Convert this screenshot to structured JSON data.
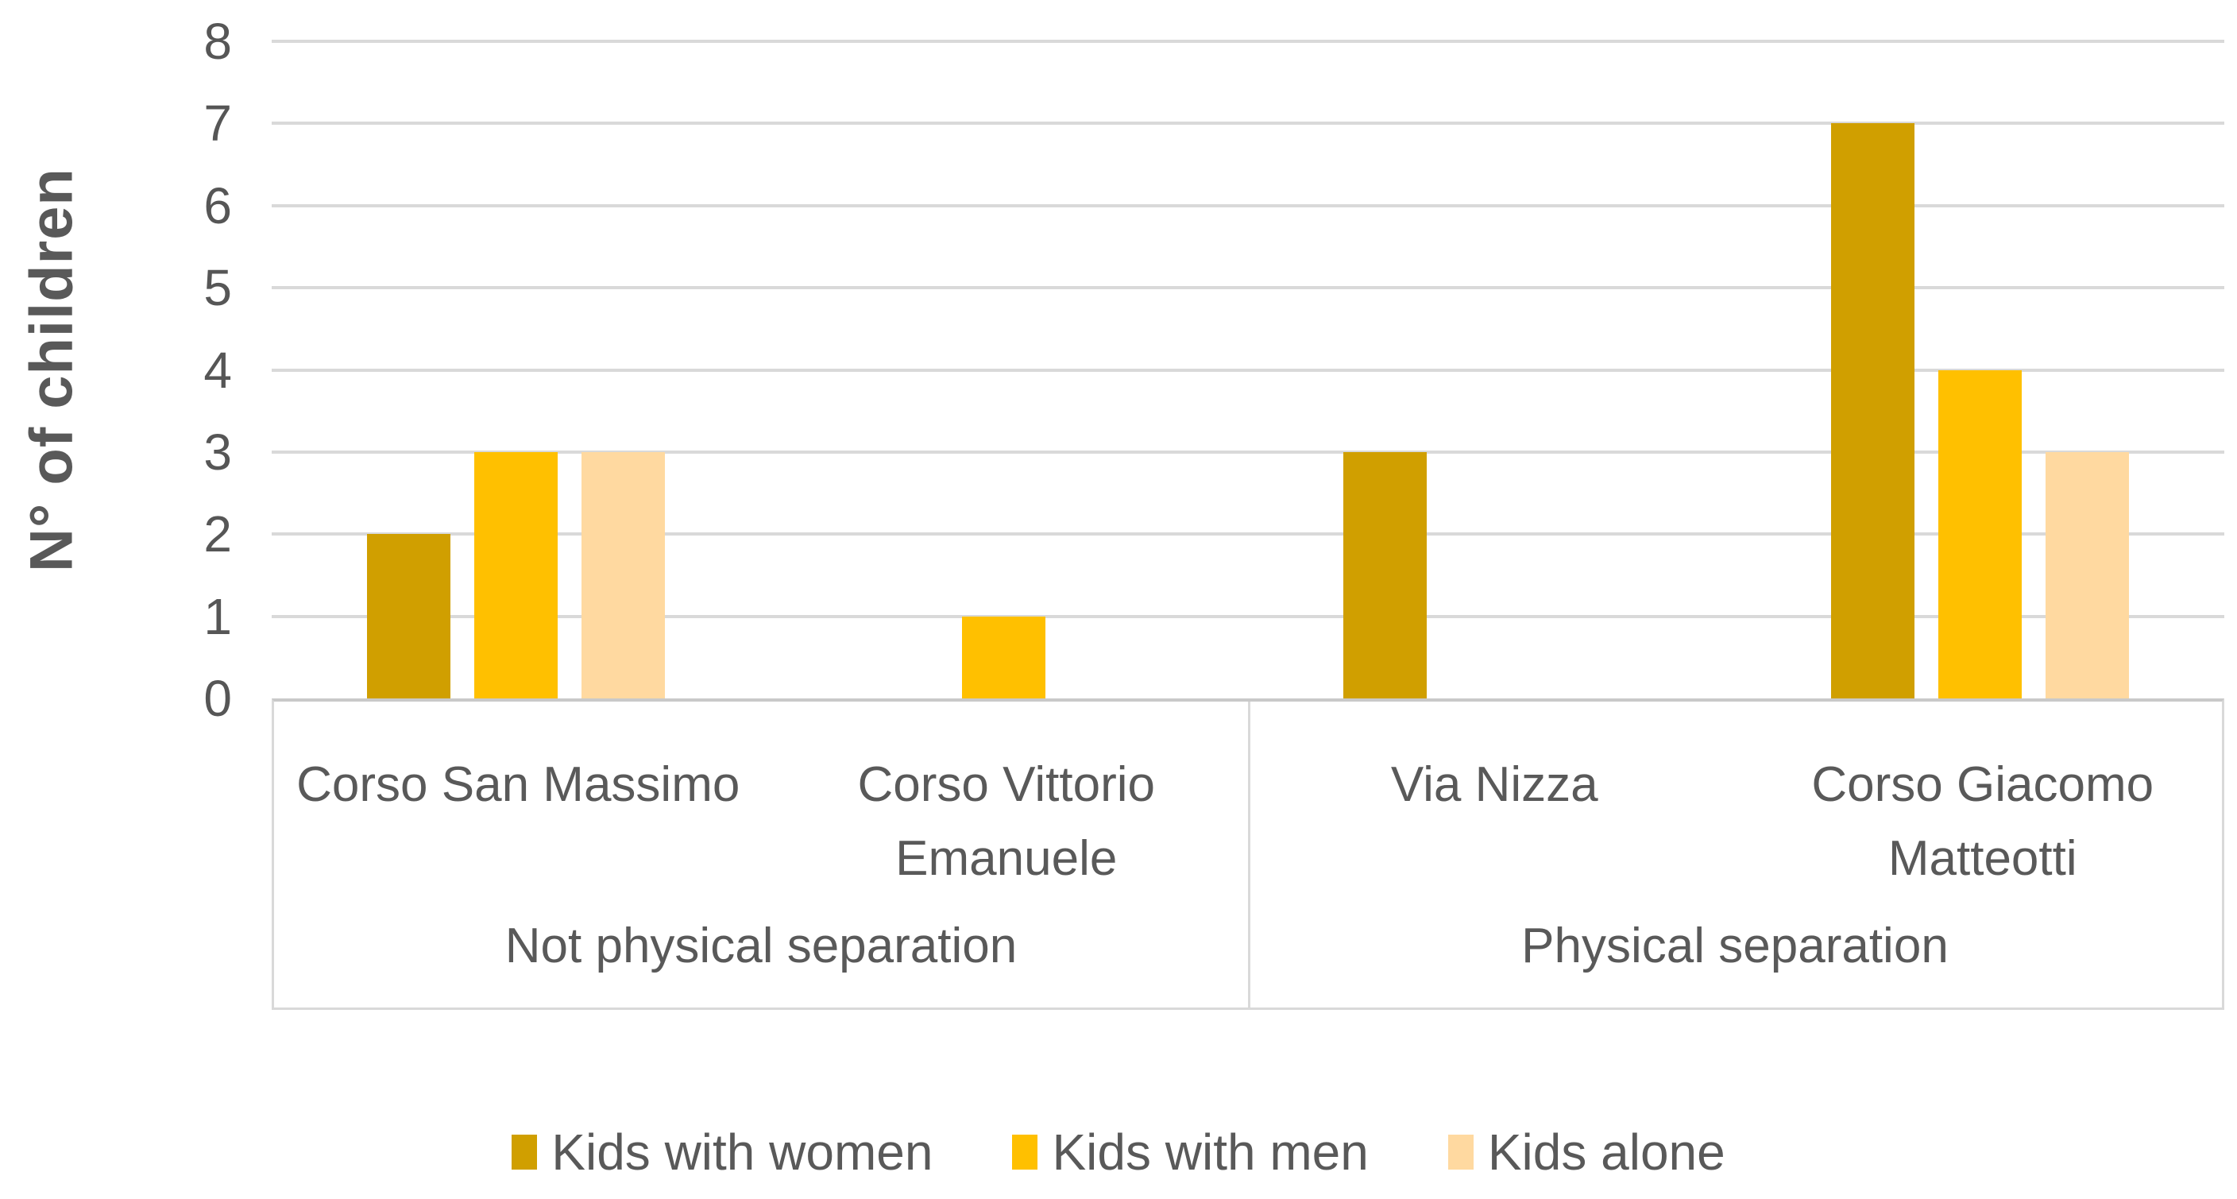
{
  "chart_data": {
    "type": "bar",
    "title": "",
    "ylabel": "N° of children",
    "xlabel": "",
    "ylim": [
      0,
      8
    ],
    "yticks": [
      0,
      1,
      2,
      3,
      4,
      5,
      6,
      7,
      8
    ],
    "grid": true,
    "legend_position": "bottom",
    "group_headers": [
      "Not physical separation",
      "Physical separation"
    ],
    "categories": [
      "Corso San Massimo",
      "Corso Vittorio Emanuele",
      "Via Nizza",
      "Corso Giacomo Matteotti"
    ],
    "category_groups": [
      0,
      0,
      1,
      1
    ],
    "series": [
      {
        "name": "Kids with women",
        "color": "#D09F00",
        "values": [
          2,
          0,
          3,
          7
        ]
      },
      {
        "name": "Kids with men",
        "color": "#FFC000",
        "values": [
          3,
          1,
          0,
          4
        ]
      },
      {
        "name": "Kids alone",
        "color": "#FFD9A0",
        "values": [
          3,
          0,
          0,
          3
        ]
      }
    ],
    "colors": {
      "axis_text": "#595959",
      "gridline": "#D9D9D9",
      "axis_line": "#C9C9C9",
      "box_border": "#D9D9D9",
      "background": "#FFFFFF"
    }
  }
}
